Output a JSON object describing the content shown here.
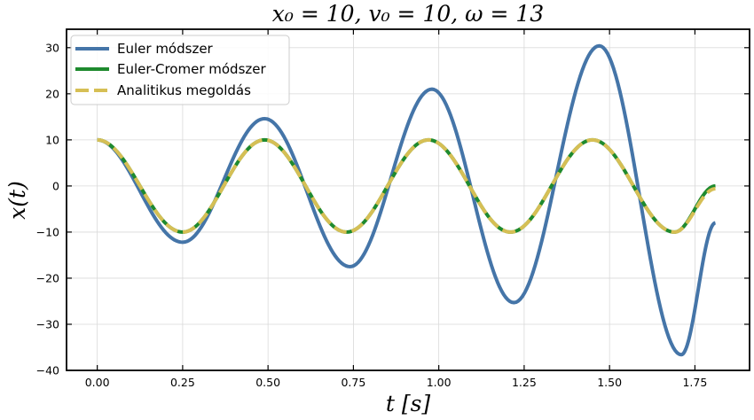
{
  "chart_data": {
    "type": "line",
    "title": "x₀ = 10, v₀ = 10, ω = 13",
    "xlabel": "t [s]",
    "ylabel": "x(t)",
    "xlim": [
      -0.09,
      1.91
    ],
    "ylim": [
      -40,
      34
    ],
    "xticks": [
      0.0,
      0.25,
      0.5,
      0.75,
      1.0,
      1.25,
      1.5,
      1.75
    ],
    "xtick_labels": [
      "0.00",
      "0.25",
      "0.50",
      "0.75",
      "1.00",
      "1.25",
      "1.50",
      "1.75"
    ],
    "yticks": [
      -40,
      -30,
      -20,
      -10,
      0,
      10,
      20,
      30
    ],
    "ytick_labels": [
      "−40",
      "−30",
      "−20",
      "−10",
      "0",
      "10",
      "20",
      "30"
    ],
    "grid": true,
    "legend_position": "top-left",
    "series": [
      {
        "name": "Euler módszer",
        "color": "#4575a8",
        "dash": "solid",
        "x": [
          0.0,
          0.25,
          0.49,
          0.74,
          0.98,
          1.22,
          1.47,
          1.71,
          1.81
        ],
        "y": [
          10,
          -12.2,
          14.6,
          -17.5,
          21.0,
          -25.3,
          30.4,
          -36.6,
          -8.0
        ]
      },
      {
        "name": "Euler-Cromer módszer",
        "color": "#1e8a2e",
        "dash": "solid",
        "x": [
          0.0,
          0.25,
          0.49,
          0.73,
          0.97,
          1.21,
          1.45,
          1.69,
          1.81
        ],
        "y": [
          10,
          -10,
          10,
          -10,
          10,
          -10,
          10,
          -10,
          0
        ]
      },
      {
        "name": "Analitikus megoldás",
        "color": "#d6bf55",
        "dash": "dashed",
        "x": [
          0.0,
          0.25,
          0.49,
          0.73,
          0.97,
          1.21,
          1.45,
          1.69,
          1.81
        ],
        "y": [
          10,
          -10,
          10,
          -10,
          10,
          -10,
          10,
          -10,
          -0.6
        ]
      }
    ]
  }
}
